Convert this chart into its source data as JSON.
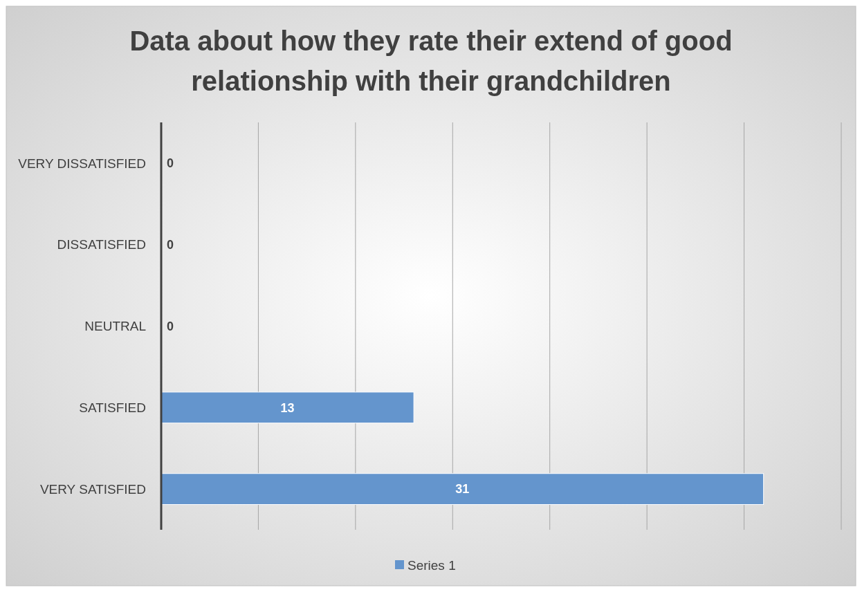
{
  "chart_data": {
    "type": "bar",
    "orientation": "horizontal",
    "title": "Data about how they rate their extend of good relationship with their grandchildren",
    "categories": [
      "VERY DISSATISFIED",
      "DISSATISFIED",
      "NEUTRAL",
      "SATISFIED",
      "VERY SATISFIED"
    ],
    "series": [
      {
        "name": "Series 1",
        "color": "#6495cd",
        "values": [
          0,
          0,
          0,
          13,
          31
        ]
      }
    ],
    "xlim": [
      0,
      35
    ],
    "xticks": [
      {
        "value": 0,
        "label": null
      },
      {
        "value": 5,
        "label": null
      },
      {
        "value": 10,
        "label": null
      },
      {
        "value": 15,
        "label": null
      },
      {
        "value": 20,
        "label": null
      },
      {
        "value": 25,
        "label": null
      },
      {
        "value": 30,
        "label": null
      },
      {
        "value": 35,
        "label": null
      }
    ],
    "tick_labels": "y",
    "grid": "x",
    "legend": "bottom",
    "data_labels": true
  }
}
